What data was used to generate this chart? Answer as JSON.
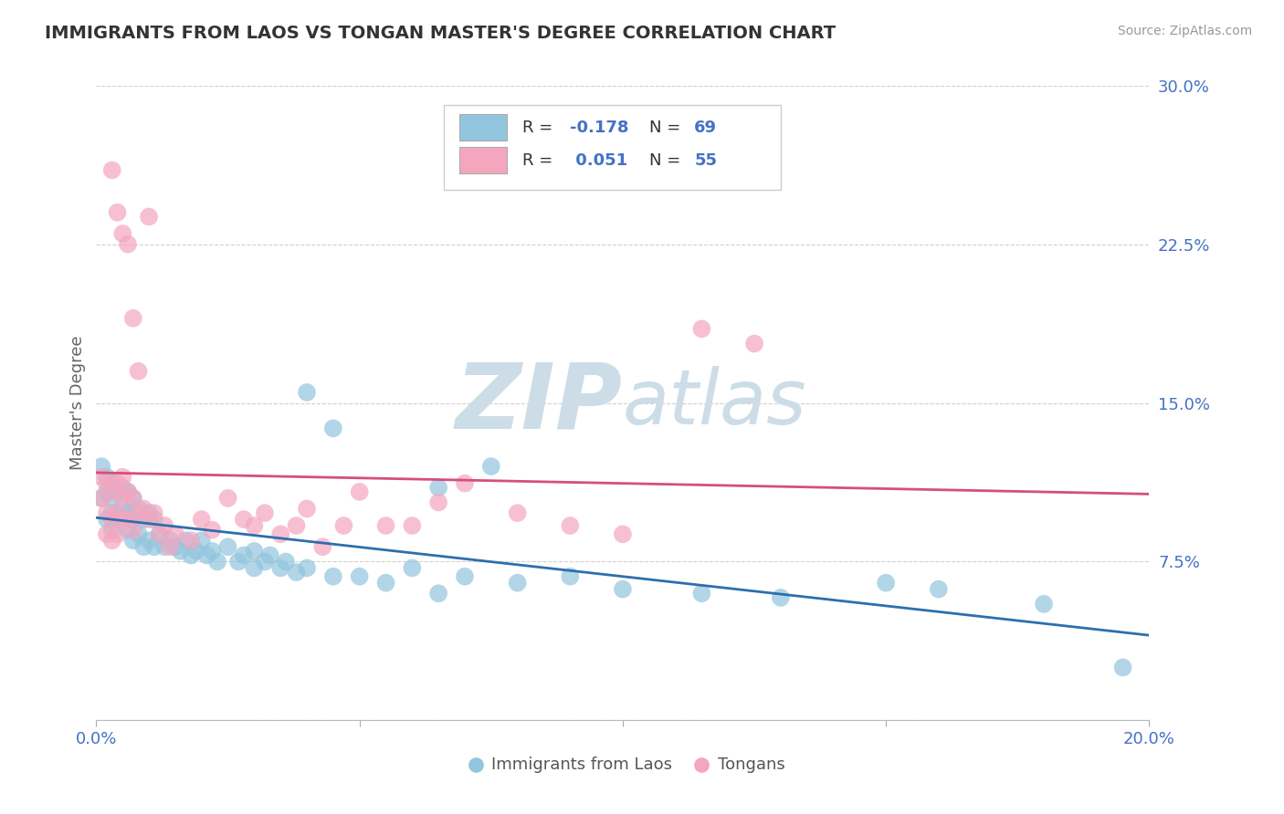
{
  "title": "IMMIGRANTS FROM LAOS VS TONGAN MASTER'S DEGREE CORRELATION CHART",
  "source": "Source: ZipAtlas.com",
  "ylabel": "Master's Degree",
  "xmin": 0.0,
  "xmax": 0.2,
  "ymin": 0.0,
  "ymax": 0.3,
  "ytick_vals": [
    0.0,
    0.075,
    0.15,
    0.225,
    0.3
  ],
  "ytick_labels": [
    "",
    "7.5%",
    "15.0%",
    "22.5%",
    "30.0%"
  ],
  "xtick_vals": [
    0.0,
    0.05,
    0.1,
    0.15,
    0.2
  ],
  "xtick_labels": [
    "0.0%",
    "",
    "",
    "",
    "20.0%"
  ],
  "blue_color": "#92c5de",
  "pink_color": "#f4a6bf",
  "blue_line_color": "#2c6fad",
  "pink_line_color": "#d64e7e",
  "axis_label_color": "#4472c4",
  "title_color": "#333333",
  "grid_color": "#d0d0d0",
  "watermark_color": "#ccdde8",
  "blue_label": "Immigrants from Laos",
  "pink_label": "Tongans",
  "r1": "-0.178",
  "n1": "69",
  "r2": "0.051",
  "n2": "55",
  "blue_x": [
    0.001,
    0.001,
    0.002,
    0.002,
    0.002,
    0.003,
    0.003,
    0.003,
    0.003,
    0.004,
    0.004,
    0.005,
    0.005,
    0.006,
    0.006,
    0.006,
    0.007,
    0.007,
    0.007,
    0.008,
    0.008,
    0.009,
    0.009,
    0.01,
    0.01,
    0.011,
    0.011,
    0.012,
    0.013,
    0.014,
    0.015,
    0.016,
    0.017,
    0.018,
    0.019,
    0.02,
    0.021,
    0.022,
    0.023,
    0.025,
    0.027,
    0.028,
    0.03,
    0.03,
    0.032,
    0.033,
    0.035,
    0.036,
    0.038,
    0.04,
    0.045,
    0.05,
    0.055,
    0.06,
    0.065,
    0.07,
    0.08,
    0.09,
    0.1,
    0.115,
    0.13,
    0.15,
    0.16,
    0.18,
    0.195,
    0.04,
    0.045,
    0.065,
    0.075
  ],
  "blue_y": [
    0.12,
    0.105,
    0.115,
    0.108,
    0.095,
    0.112,
    0.105,
    0.098,
    0.09,
    0.108,
    0.095,
    0.11,
    0.1,
    0.108,
    0.098,
    0.09,
    0.105,
    0.095,
    0.085,
    0.1,
    0.088,
    0.095,
    0.082,
    0.098,
    0.085,
    0.095,
    0.082,
    0.088,
    0.082,
    0.085,
    0.082,
    0.08,
    0.085,
    0.078,
    0.08,
    0.085,
    0.078,
    0.08,
    0.075,
    0.082,
    0.075,
    0.078,
    0.08,
    0.072,
    0.075,
    0.078,
    0.072,
    0.075,
    0.07,
    0.072,
    0.068,
    0.068,
    0.065,
    0.072,
    0.06,
    0.068,
    0.065,
    0.068,
    0.062,
    0.06,
    0.058,
    0.065,
    0.062,
    0.055,
    0.025,
    0.155,
    0.138,
    0.11,
    0.12
  ],
  "pink_x": [
    0.001,
    0.001,
    0.002,
    0.002,
    0.002,
    0.003,
    0.003,
    0.003,
    0.004,
    0.004,
    0.004,
    0.005,
    0.005,
    0.005,
    0.006,
    0.006,
    0.007,
    0.007,
    0.008,
    0.009,
    0.01,
    0.011,
    0.012,
    0.013,
    0.014,
    0.015,
    0.018,
    0.02,
    0.022,
    0.025,
    0.028,
    0.03,
    0.032,
    0.035,
    0.038,
    0.04,
    0.043,
    0.047,
    0.05,
    0.055,
    0.06,
    0.065,
    0.07,
    0.08,
    0.09,
    0.1,
    0.115,
    0.125,
    0.003,
    0.004,
    0.005,
    0.006,
    0.007,
    0.008,
    0.01
  ],
  "pink_y": [
    0.115,
    0.105,
    0.112,
    0.098,
    0.088,
    0.108,
    0.095,
    0.085,
    0.112,
    0.098,
    0.088,
    0.115,
    0.105,
    0.095,
    0.108,
    0.095,
    0.105,
    0.09,
    0.098,
    0.1,
    0.095,
    0.098,
    0.088,
    0.092,
    0.082,
    0.088,
    0.085,
    0.095,
    0.09,
    0.105,
    0.095,
    0.092,
    0.098,
    0.088,
    0.092,
    0.1,
    0.082,
    0.092,
    0.108,
    0.092,
    0.092,
    0.103,
    0.112,
    0.098,
    0.092,
    0.088,
    0.185,
    0.178,
    0.26,
    0.24,
    0.23,
    0.225,
    0.19,
    0.165,
    0.238
  ]
}
